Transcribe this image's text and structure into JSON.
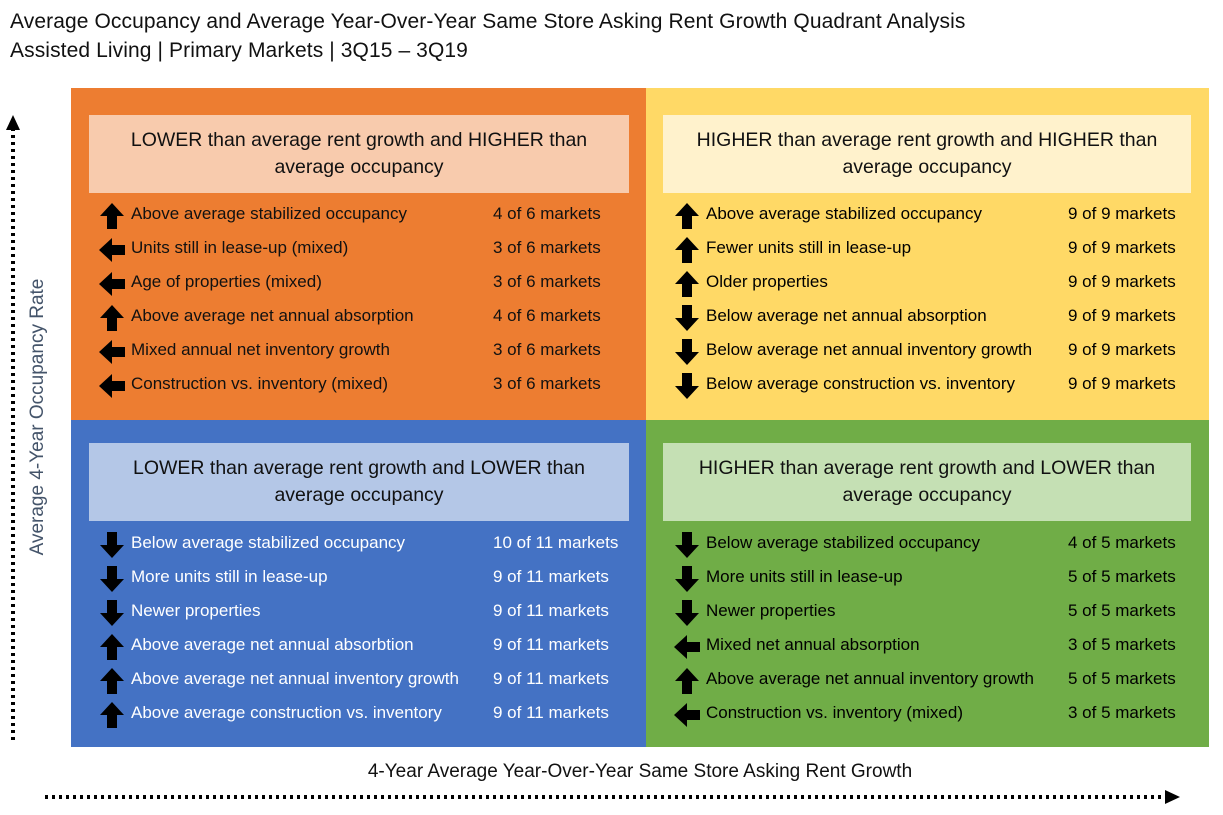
{
  "title": {
    "line1": "Average Occupancy and Average Year-Over-Year Same Store Asking Rent Growth Quadrant Analysis",
    "line2": "Assisted Living | Primary Markets | 3Q15 – 3Q19"
  },
  "axes": {
    "y_label": "Average 4-Year Occupancy Rate",
    "x_label": "4-Year Average Year-Over-Year Same Store Asking Rent Growth"
  },
  "colors": {
    "top_left": "#ED7D31",
    "top_right": "#FFD966",
    "bottom_left": "#4472C4",
    "bottom_right": "#70AD47"
  },
  "quadrants": {
    "top_left": {
      "heading": "LOWER than average rent growth and HIGHER than average occupancy",
      "rows": [
        {
          "arrow": "up",
          "label": "Above average stabilized occupancy",
          "count": "4 of 6 markets"
        },
        {
          "arrow": "left",
          "label": "Units still in lease-up (mixed)",
          "count": "3 of 6 markets"
        },
        {
          "arrow": "left",
          "label": "Age of properties (mixed)",
          "count": "3 of 6 markets"
        },
        {
          "arrow": "up",
          "label": "Above average net annual absorption",
          "count": "4 of 6 markets"
        },
        {
          "arrow": "left",
          "label": "Mixed annual net inventory growth",
          "count": "3 of 6 markets"
        },
        {
          "arrow": "left",
          "label": "Construction vs. inventory (mixed)",
          "count": "3 of 6 markets"
        }
      ]
    },
    "top_right": {
      "heading": "HIGHER than average rent growth and HIGHER than average occupancy",
      "rows": [
        {
          "arrow": "up",
          "label": "Above average stabilized occupancy",
          "count": "9 of 9 markets"
        },
        {
          "arrow": "up",
          "label": "Fewer units still in lease-up",
          "count": "9 of 9 markets"
        },
        {
          "arrow": "up",
          "label": "Older properties",
          "count": "9 of 9 markets"
        },
        {
          "arrow": "down",
          "label": "Below average net annual absorption",
          "count": "9 of 9 markets"
        },
        {
          "arrow": "down",
          "label": "Below average net annual inventory growth",
          "count": "9 of 9 markets"
        },
        {
          "arrow": "down",
          "label": "Below average construction vs. inventory",
          "count": "9 of 9 markets"
        }
      ]
    },
    "bottom_left": {
      "heading": "LOWER than average rent growth and LOWER than average occupancy",
      "rows": [
        {
          "arrow": "down",
          "label": "Below average stabilized occupancy",
          "count": "10 of 11 markets"
        },
        {
          "arrow": "down",
          "label": "More units still in lease-up",
          "count": "9 of 11 markets"
        },
        {
          "arrow": "down",
          "label": "Newer properties",
          "count": "9 of 11 markets"
        },
        {
          "arrow": "up",
          "label": "Above average net annual absorbtion",
          "count": "9 of 11 markets"
        },
        {
          "arrow": "up",
          "label": "Above average net annual inventory growth",
          "count": "9 of 11 markets"
        },
        {
          "arrow": "up",
          "label": "Above average construction vs. inventory",
          "count": "9 of 11 markets"
        }
      ]
    },
    "bottom_right": {
      "heading": "HIGHER than average rent growth and LOWER than average occupancy",
      "rows": [
        {
          "arrow": "down",
          "label": "Below average stabilized occupancy",
          "count": "4 of 5 markets"
        },
        {
          "arrow": "down",
          "label": "More units still in lease-up",
          "count": "5 of 5 markets"
        },
        {
          "arrow": "down",
          "label": "Newer properties",
          "count": "5 of 5 markets"
        },
        {
          "arrow": "left",
          "label": "Mixed net annual absorption",
          "count": "3 of 5 markets"
        },
        {
          "arrow": "up",
          "label": "Above average net annual inventory growth",
          "count": "5 of 5 markets"
        },
        {
          "arrow": "left",
          "label": "Construction vs. inventory (mixed)",
          "count": "3 of 5 markets"
        }
      ]
    }
  }
}
